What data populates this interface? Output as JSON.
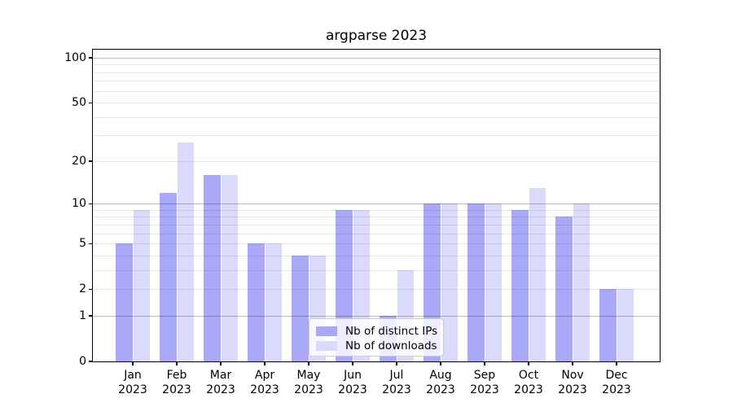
{
  "chart_data": {
    "type": "bar",
    "title": "argparse 2023",
    "categories": [
      "Jan",
      "Feb",
      "Mar",
      "Apr",
      "May",
      "Jun",
      "Jul",
      "Aug",
      "Sep",
      "Oct",
      "Nov",
      "Dec"
    ],
    "category_year": "2023",
    "series": [
      {
        "name": "Nb of distinct IPs",
        "color": "#a9a9f7",
        "values": [
          5,
          12,
          16,
          5,
          4,
          9,
          1,
          10,
          10,
          9,
          8,
          2
        ]
      },
      {
        "name": "Nb of downloads",
        "color": "#dadafb",
        "values": [
          9,
          27,
          16,
          5,
          4,
          9,
          3,
          10,
          10,
          13,
          10,
          2
        ]
      }
    ],
    "y_scale": "log10(1+v)",
    "ylim": [
      0,
      100
    ],
    "y_tick_labels": [
      100,
      50,
      20,
      10,
      5,
      2,
      1,
      0
    ],
    "grid_major_values": [
      1,
      10,
      100
    ],
    "grid_minor_values": [
      2,
      3,
      4,
      5,
      6,
      7,
      8,
      9,
      20,
      30,
      40,
      50,
      60,
      70,
      80,
      90
    ],
    "legend_position": "lower center",
    "grid": true,
    "colors": {
      "grid_major": "rgba(0,0,0,0.26)",
      "grid_minor": "rgba(0,0,0,0.09)",
      "axis": "#000000",
      "legend_border": "#cccccc",
      "legend_background": "rgba(255,255,255,0.8)",
      "text": "#000000"
    }
  }
}
